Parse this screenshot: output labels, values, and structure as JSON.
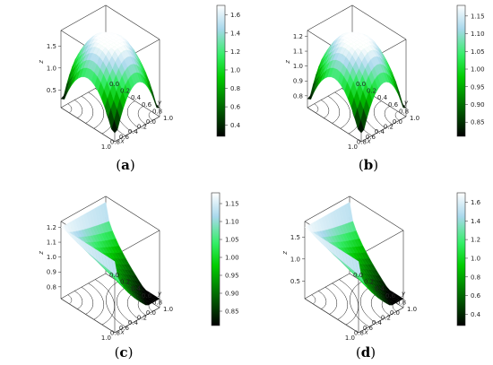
{
  "panels": [
    {
      "caption_open": "(",
      "caption_letter": "a",
      "caption_close": ")",
      "shape": "ridge",
      "z_ticks": [
        "0.5",
        "1.0",
        "1.5"
      ],
      "z_range": [
        0.3,
        1.72
      ],
      "x_label": "x",
      "x_ticks": [
        "1.0",
        "0.8",
        "0.6",
        "0.4",
        "0.2",
        "0.0"
      ],
      "y_label": "y",
      "y_ticks": [
        "0.0",
        "0.2",
        "0.4",
        "0.6",
        "0.8",
        "1.0"
      ],
      "colorbar_ticks": [
        "0.4",
        "0.6",
        "0.8",
        "1.0",
        "1.2",
        "1.4",
        "1.6"
      ],
      "colorbar_range": [
        0.28,
        1.7
      ]
    },
    {
      "caption_open": "(",
      "caption_letter": "b",
      "caption_close": ")",
      "shape": "ridge",
      "z_ticks": [
        "0.8",
        "0.9",
        "1.0",
        "1.1",
        "1.2"
      ],
      "z_range": [
        0.78,
        1.2
      ],
      "x_label": "x",
      "x_ticks": [
        "1.0",
        "0.8",
        "0.6",
        "0.4",
        "0.2",
        "0.0"
      ],
      "y_label": "y",
      "y_ticks": [
        "0.0",
        "0.2",
        "0.4",
        "0.6",
        "0.8",
        "1.0"
      ],
      "colorbar_ticks": [
        "0.85",
        "0.90",
        "0.95",
        "1.00",
        "1.05",
        "1.10",
        "1.15"
      ],
      "colorbar_range": [
        0.81,
        1.18
      ]
    },
    {
      "caption_open": "(",
      "caption_letter": "c",
      "caption_close": ")",
      "shape": "saddle",
      "z_ticks": [
        "0.8",
        "0.9",
        "1.0",
        "1.1",
        "1.2"
      ],
      "z_range": [
        0.78,
        1.2
      ],
      "x_label": "x",
      "x_ticks": [
        "1.0",
        "0.8",
        "0.6",
        "0.4",
        "0.2",
        "0.0"
      ],
      "y_label": "y",
      "y_ticks": [
        "0.0",
        "0.2",
        "0.4",
        "0.6",
        "0.8",
        "1.0"
      ],
      "colorbar_ticks": [
        "0.85",
        "0.90",
        "0.95",
        "1.00",
        "1.05",
        "1.10",
        "1.15"
      ],
      "colorbar_range": [
        0.81,
        1.18
      ]
    },
    {
      "caption_open": "(",
      "caption_letter": "d",
      "caption_close": ")",
      "shape": "saddle",
      "z_ticks": [
        "0.5",
        "1.0",
        "1.5"
      ],
      "z_range": [
        0.3,
        1.72
      ],
      "x_label": "x",
      "x_ticks": [
        "1.0",
        "0.8",
        "0.6",
        "0.4",
        "0.2",
        "0.0"
      ],
      "y_label": "y",
      "y_ticks": [
        "0.0",
        "0.2",
        "0.4",
        "0.6",
        "0.8",
        "1.0"
      ],
      "colorbar_ticks": [
        "0.4",
        "0.6",
        "0.8",
        "1.0",
        "1.2",
        "1.4",
        "1.6"
      ],
      "colorbar_range": [
        0.28,
        1.7
      ]
    }
  ],
  "colors": {
    "low": "#000000",
    "mid": "#00ff00",
    "high": "#ffffff",
    "high_tint": "#9fd0e8",
    "frame": "#333333"
  }
}
